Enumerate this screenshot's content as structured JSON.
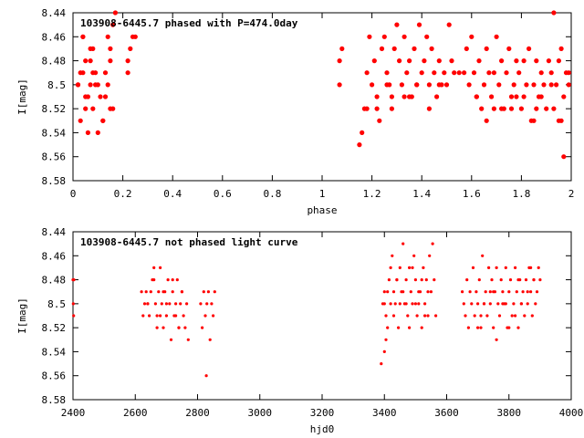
{
  "chart_data": [
    {
      "type": "scatter",
      "title": "103908-6445.7 phased with P=474.0day",
      "xlabel": "phase",
      "ylabel": "I[mag]",
      "xlim": [
        0,
        2
      ],
      "ylim": [
        8.44,
        8.58
      ],
      "y_inverted": true,
      "x_ticks": [
        "0",
        "0.2",
        "0.4",
        "0.6",
        "0.8",
        "1",
        "1.2",
        "1.4",
        "1.6",
        "1.8",
        "2"
      ],
      "x_tick_values": [
        0,
        0.2,
        0.4,
        0.6,
        0.8,
        1.0,
        1.2,
        1.4,
        1.6,
        1.8,
        2.0
      ],
      "y_ticks": [
        "8.44",
        "8.46",
        "8.48",
        "8.5",
        "8.52",
        "8.54",
        "8.56",
        "8.58"
      ],
      "y_tick_values": [
        8.44,
        8.46,
        8.48,
        8.5,
        8.52,
        8.54,
        8.56,
        8.58
      ],
      "grid": false,
      "legend": "none",
      "marker_color": "#ff0000",
      "marker": "filled-circle-large",
      "series": [
        {
          "x": [
            0.02,
            0.03,
            0.04,
            0.04,
            0.05,
            0.05,
            0.06,
            0.07,
            0.07,
            0.08,
            0.08,
            0.09,
            0.1,
            0.11,
            0.12,
            0.13,
            0.14,
            0.14,
            0.15,
            0.16,
            0.16,
            0.17,
            0.22,
            0.23,
            0.24,
            0.02,
            0.05,
            0.07,
            0.09,
            0.12,
            0.15,
            0.04,
            0.06,
            0.1,
            0.13,
            0.22,
            0.25,
            0.03,
            0.08,
            0.15,
            1.07,
            1.07,
            1.08,
            1.15,
            1.16,
            1.17,
            1.18,
            1.19,
            1.2,
            1.21,
            1.22,
            1.23,
            1.24,
            1.25,
            1.26,
            1.27,
            1.28,
            1.29,
            1.3,
            1.31,
            1.32,
            1.33,
            1.34,
            1.35,
            1.36,
            1.37,
            1.38,
            1.39,
            1.4,
            1.41,
            1.42,
            1.43,
            1.44,
            1.45,
            1.46,
            1.47,
            1.48,
            1.49,
            1.5,
            1.51,
            1.52,
            1.53,
            1.55,
            1.57,
            1.58,
            1.59,
            1.6,
            1.61,
            1.62,
            1.63,
            1.64,
            1.65,
            1.66,
            1.67,
            1.68,
            1.69,
            1.7,
            1.71,
            1.72,
            1.73,
            1.74,
            1.75,
            1.76,
            1.77,
            1.78,
            1.79,
            1.8,
            1.81,
            1.82,
            1.83,
            1.84,
            1.85,
            1.86,
            1.87,
            1.88,
            1.89,
            1.9,
            1.91,
            1.92,
            1.93,
            1.94,
            1.95,
            1.96,
            1.97,
            1.98,
            1.99,
            1.22,
            1.26,
            1.33,
            1.38,
            1.43,
            1.62,
            1.66,
            1.72,
            1.78,
            1.85,
            1.88,
            1.92,
            1.95,
            1.97,
            1.99,
            1.18,
            1.28,
            1.35,
            1.47,
            1.69,
            1.76,
            1.81,
            1.86,
            1.93,
            1.96
          ],
          "y": [
            8.5,
            8.53,
            8.46,
            8.49,
            8.48,
            8.51,
            8.54,
            8.5,
            8.47,
            8.49,
            8.52,
            8.5,
            8.54,
            8.51,
            8.53,
            8.49,
            8.46,
            8.5,
            8.48,
            8.45,
            8.52,
            8.44,
            8.49,
            8.47,
            8.46,
            8.5,
            8.52,
            8.48,
            8.49,
            8.53,
            8.47,
            8.46,
            8.51,
            8.5,
            8.51,
            8.48,
            8.46,
            8.49,
            8.47,
            8.52,
            8.48,
            8.5,
            8.47,
            8.55,
            8.54,
            8.52,
            8.49,
            8.46,
            8.5,
            8.48,
            8.51,
            8.53,
            8.47,
            8.46,
            8.49,
            8.5,
            8.51,
            8.47,
            8.45,
            8.48,
            8.5,
            8.46,
            8.49,
            8.48,
            8.51,
            8.47,
            8.5,
            8.45,
            8.49,
            8.48,
            8.46,
            8.5,
            8.47,
            8.49,
            8.51,
            8.48,
            8.5,
            8.49,
            8.5,
            8.45,
            8.48,
            8.49,
            8.49,
            8.49,
            8.47,
            8.5,
            8.46,
            8.49,
            8.51,
            8.48,
            8.52,
            8.5,
            8.47,
            8.49,
            8.51,
            8.49,
            8.46,
            8.5,
            8.48,
            8.52,
            8.49,
            8.47,
            8.51,
            8.5,
            8.48,
            8.49,
            8.52,
            8.48,
            8.5,
            8.47,
            8.53,
            8.5,
            8.48,
            8.51,
            8.49,
            8.5,
            8.52,
            8.48,
            8.49,
            8.44,
            8.5,
            8.53,
            8.47,
            8.51,
            8.49,
            8.5,
            8.52,
            8.5,
            8.51,
            8.5,
            8.52,
            8.51,
            8.53,
            8.52,
            8.51,
            8.53,
            8.51,
            8.5,
            8.48,
            8.56,
            8.49,
            8.52,
            8.52,
            8.51,
            8.5,
            8.52,
            8.52,
            8.51,
            8.52,
            8.52,
            8.53
          ]
        }
      ]
    },
    {
      "type": "scatter",
      "title": "103908-6445.7 not phased light curve",
      "xlabel": "hjd0",
      "ylabel": "I[mag]",
      "xlim": [
        2400,
        4000
      ],
      "ylim": [
        8.44,
        8.58
      ],
      "y_inverted": true,
      "x_ticks": [
        "2400",
        "2600",
        "2800",
        "3000",
        "3200",
        "3400",
        "3600",
        "3800",
        "4000"
      ],
      "x_tick_values": [
        2400,
        2600,
        2800,
        3000,
        3200,
        3400,
        3600,
        3800,
        4000
      ],
      "y_ticks": [
        "8.44",
        "8.46",
        "8.48",
        "8.5",
        "8.52",
        "8.54",
        "8.56",
        "8.58"
      ],
      "y_tick_values": [
        8.44,
        8.46,
        8.48,
        8.5,
        8.52,
        8.54,
        8.56,
        8.58
      ],
      "grid": false,
      "legend": "none",
      "marker_color": "#ff0000",
      "marker": "filled-circle-small",
      "series": [
        {
          "x": [
            2400,
            2401,
            2402,
            2403,
            2620,
            2625,
            2630,
            2635,
            2640,
            2645,
            2650,
            2655,
            2660,
            2665,
            2670,
            2675,
            2680,
            2685,
            2690,
            2695,
            2700,
            2705,
            2710,
            2715,
            2720,
            2725,
            2730,
            2735,
            2740,
            2745,
            2750,
            2755,
            2760,
            2765,
            2770,
            2660,
            2670,
            2690,
            2700,
            2720,
            2730,
            2740,
            2750,
            2640,
            2680,
            2810,
            2815,
            2820,
            2825,
            2830,
            2835,
            2840,
            2845,
            2850,
            2855,
            2828,
            3390,
            3395,
            3400,
            3405,
            3410,
            3415,
            3420,
            3425,
            3430,
            3435,
            3440,
            3445,
            3450,
            3455,
            3460,
            3465,
            3470,
            3475,
            3480,
            3485,
            3490,
            3495,
            3500,
            3505,
            3510,
            3515,
            3520,
            3525,
            3530,
            3535,
            3540,
            3545,
            3550,
            3555,
            3560,
            3565,
            3400,
            3410,
            3420,
            3430,
            3440,
            3450,
            3460,
            3470,
            3480,
            3490,
            3500,
            3510,
            3520,
            3530,
            3540,
            3400,
            3405,
            3650,
            3655,
            3660,
            3665,
            3670,
            3675,
            3680,
            3685,
            3690,
            3695,
            3700,
            3705,
            3710,
            3715,
            3720,
            3725,
            3730,
            3735,
            3740,
            3745,
            3750,
            3755,
            3760,
            3765,
            3770,
            3775,
            3780,
            3785,
            3790,
            3795,
            3800,
            3805,
            3810,
            3815,
            3820,
            3825,
            3830,
            3835,
            3840,
            3845,
            3850,
            3855,
            3860,
            3865,
            3870,
            3875,
            3880,
            3885,
            3890,
            3895,
            3900,
            3700,
            3720,
            3740,
            3760,
            3780,
            3800,
            3820,
            3840,
            3860,
            3880,
            3710,
            3750,
            3790,
            3830,
            3870
          ],
          "y": [
            8.48,
            8.5,
            8.51,
            8.48,
            8.49,
            8.51,
            8.5,
            8.49,
            8.5,
            8.51,
            8.49,
            8.48,
            8.47,
            8.5,
            8.52,
            8.49,
            8.47,
            8.5,
            8.52,
            8.49,
            8.51,
            8.48,
            8.5,
            8.53,
            8.49,
            8.51,
            8.5,
            8.48,
            8.52,
            8.5,
            8.49,
            8.51,
            8.52,
            8.5,
            8.53,
            8.48,
            8.51,
            8.49,
            8.5,
            8.48,
            8.51,
            8.52,
            8.49,
            8.5,
            8.51,
            8.5,
            8.52,
            8.49,
            8.51,
            8.5,
            8.49,
            8.53,
            8.5,
            8.51,
            8.49,
            8.56,
            8.55,
            8.5,
            8.49,
            8.51,
            8.52,
            8.48,
            8.5,
            8.46,
            8.49,
            8.5,
            8.48,
            8.52,
            8.47,
            8.49,
            8.45,
            8.5,
            8.48,
            8.51,
            8.47,
            8.49,
            8.5,
            8.46,
            8.48,
            8.51,
            8.5,
            8.49,
            8.52,
            8.47,
            8.5,
            8.48,
            8.51,
            8.46,
            8.49,
            8.45,
            8.48,
            8.51,
            8.5,
            8.49,
            8.47,
            8.51,
            8.48,
            8.5,
            8.49,
            8.5,
            8.52,
            8.47,
            8.5,
            8.49,
            8.48,
            8.51,
            8.49,
            8.54,
            8.53,
            8.49,
            8.5,
            8.51,
            8.48,
            8.52,
            8.49,
            8.5,
            8.47,
            8.51,
            8.49,
            8.5,
            8.48,
            8.52,
            8.46,
            8.5,
            8.49,
            8.51,
            8.47,
            8.5,
            8.48,
            8.52,
            8.49,
            8.47,
            8.5,
            8.51,
            8.48,
            8.49,
            8.5,
            8.47,
            8.52,
            8.49,
            8.48,
            8.51,
            8.5,
            8.47,
            8.49,
            8.52,
            8.48,
            8.5,
            8.49,
            8.51,
            8.48,
            8.5,
            8.47,
            8.49,
            8.51,
            8.48,
            8.5,
            8.49,
            8.47,
            8.48,
            8.52,
            8.5,
            8.49,
            8.53,
            8.5,
            8.52,
            8.51,
            8.5,
            8.49,
            8.48,
            8.51,
            8.49,
            8.5,
            8.48,
            8.47
          ]
        }
      ]
    }
  ]
}
